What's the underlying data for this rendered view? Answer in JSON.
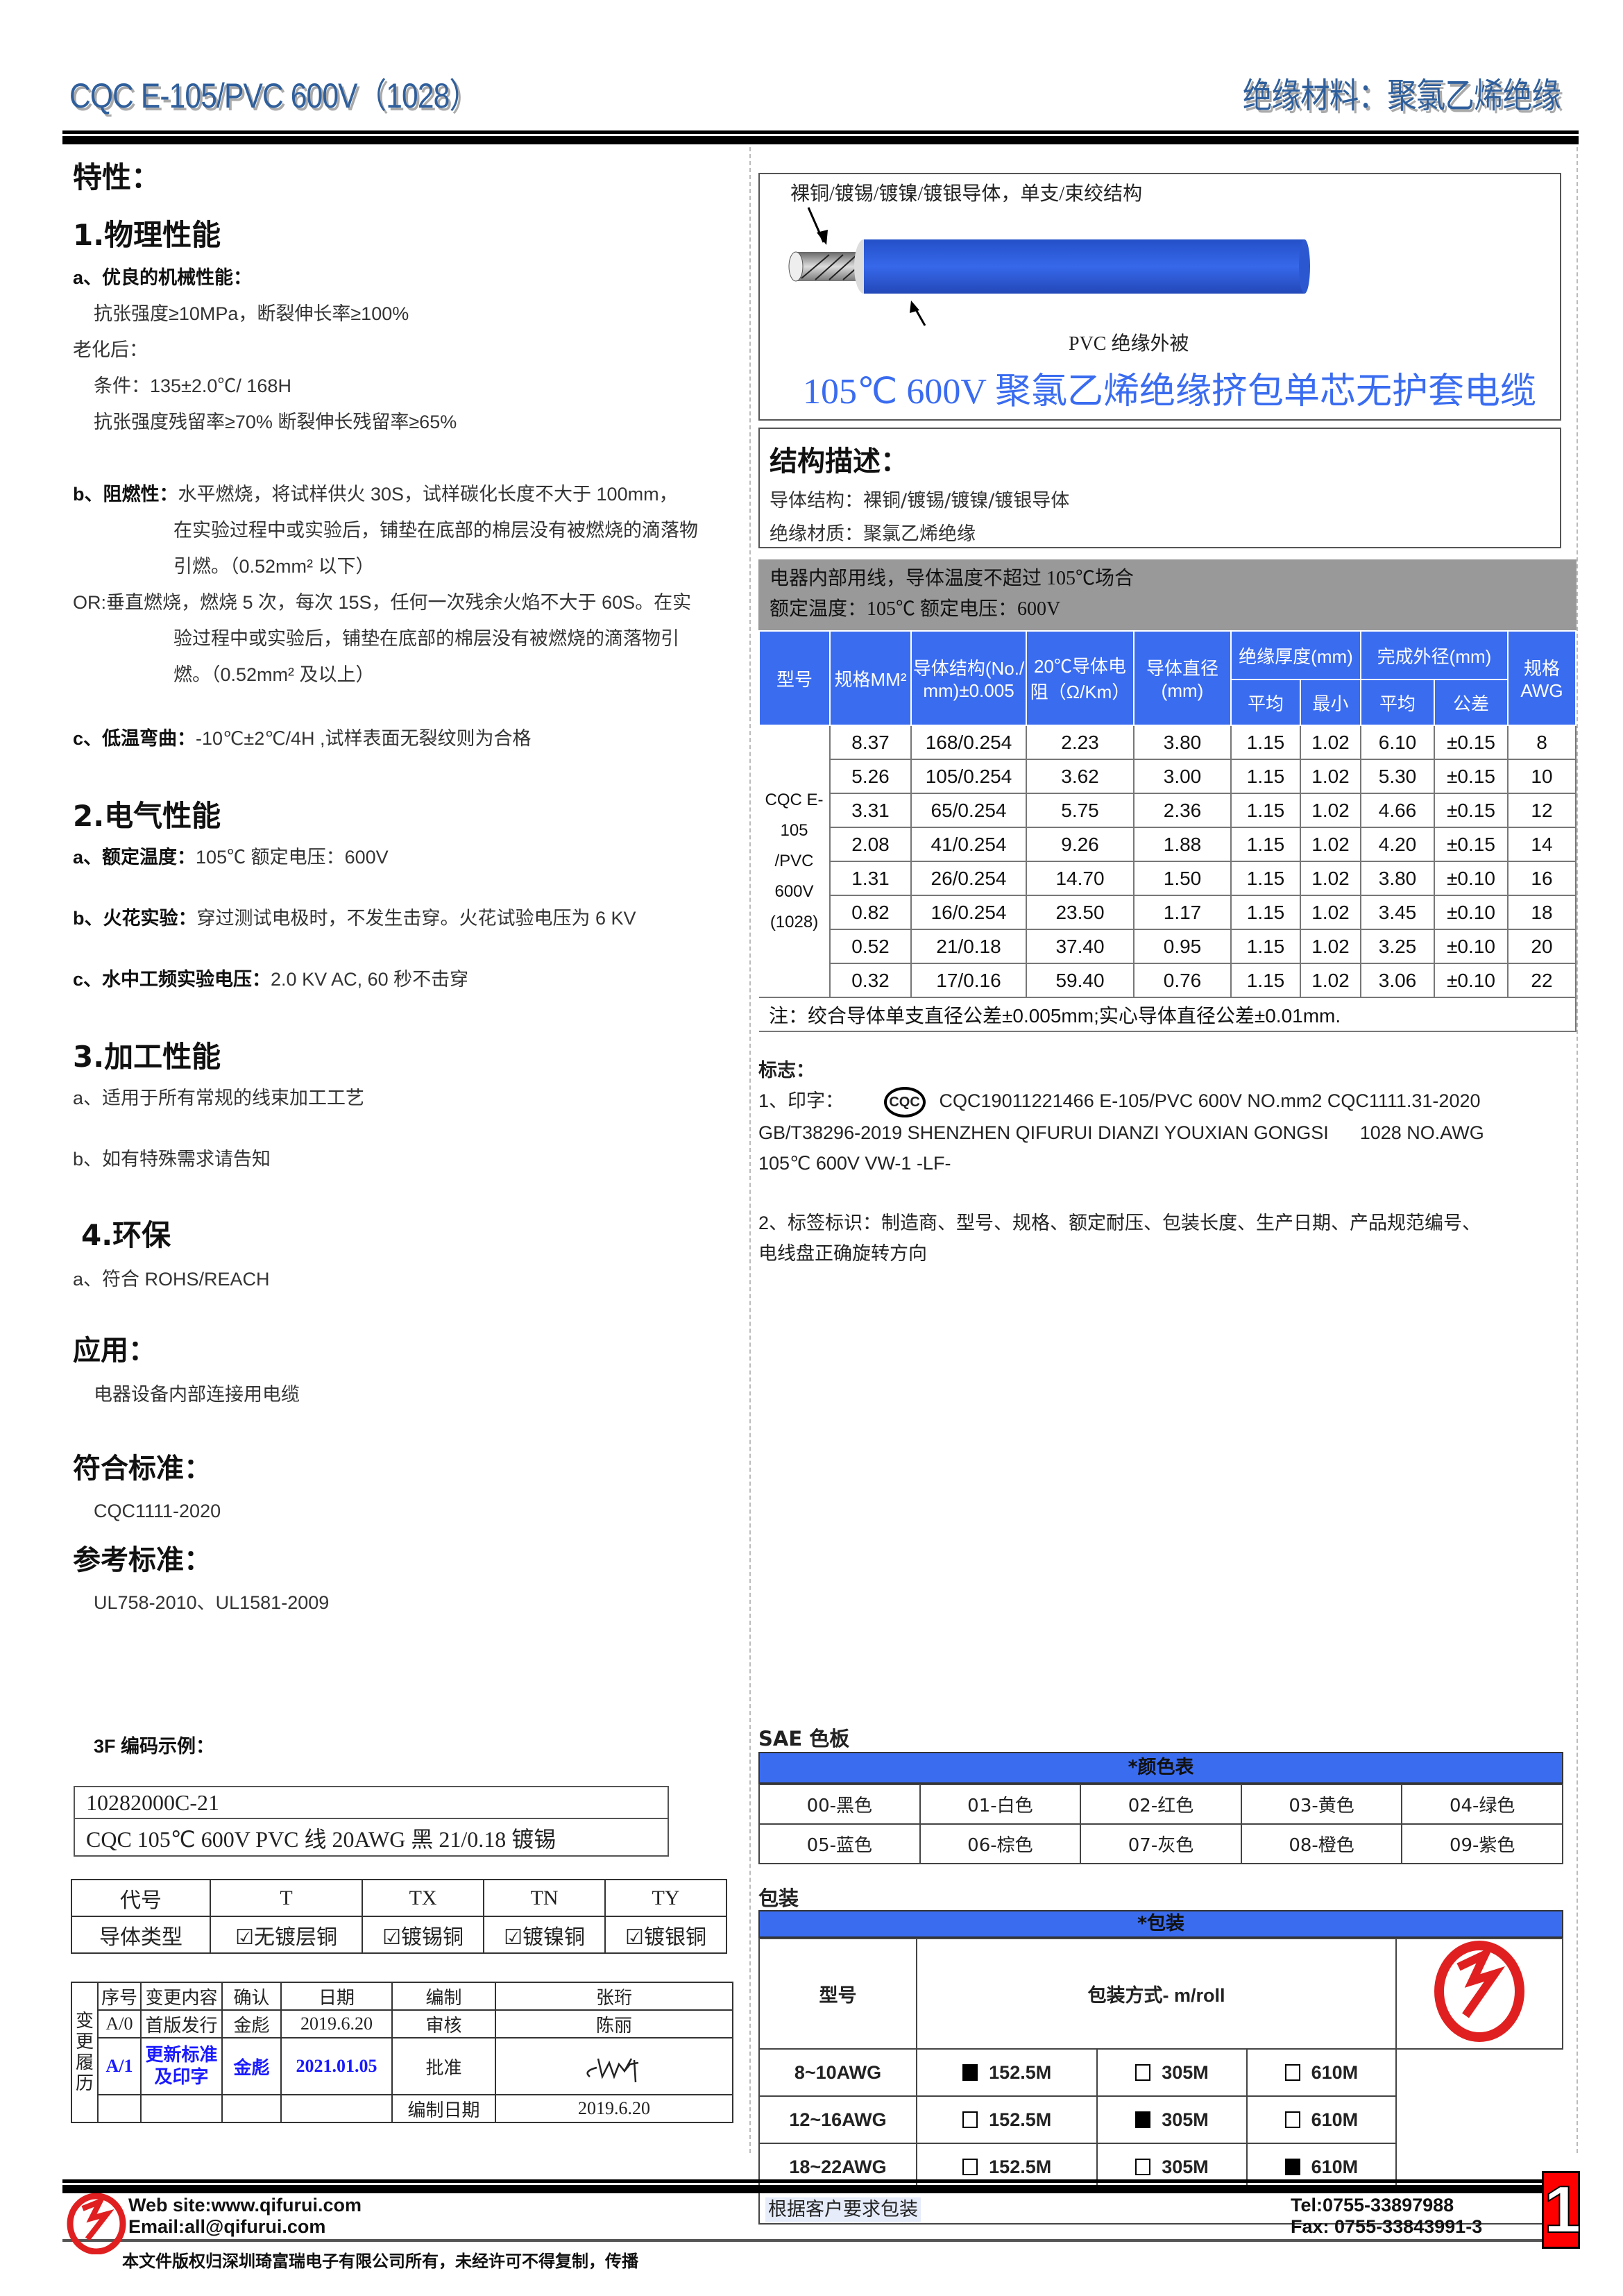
{
  "header": {
    "left_title": "CQC E-105/PVC 600V（1028）",
    "right_title": "绝缘材料：聚氯乙烯绝缘"
  },
  "left": {
    "features_title": "特性：",
    "physical": {
      "title": "1.物理性能",
      "a_label": "a、优良的机械性能：",
      "a1": "抗张强度≥10MPa，断裂伸长率≥100%",
      "aging": "老化后：",
      "cond": "条件：135±2.0℃/ 168H",
      "retain": "抗张强度残留率≥70%  断裂伸长残留率≥65%",
      "b_label": "b、阻燃性：",
      "b1": "水平燃烧，将试样供火 30S，试样碳化长度不大于 100mm，",
      "b2": "在实验过程中或实验后，铺垫在底部的棉层没有被燃烧的滴落物",
      "b3": "引燃。（0.52mm² 以下）",
      "or1": "OR:垂直燃烧，燃烧 5 次，每次 15S，任何一次残余火焰不大于 60S。在实",
      "or2": "验过程中或实验后，铺垫在底部的棉层没有被燃烧的滴落物引",
      "or3": "燃。（0.52mm² 及以上）",
      "c_label": "c、低温弯曲：",
      "c1": "-10℃±2℃/4H ,试样表面无裂纹则为合格"
    },
    "electrical": {
      "title": "2.电气性能",
      "a_label": "a、额定温度：",
      "a1": "105℃   额定电压：600V",
      "b_label": "b、火花实验：",
      "b1": "穿过测试电极时，不发生击穿。火花试验电压为 6 KV",
      "c_label": "c、水中工频实验电压：",
      "c1": "2.0 KV AC, 60 秒不击穿"
    },
    "processing": {
      "title": "3.加工性能",
      "a": "a、适用于所有常规的线束加工工艺",
      "b": "b、如有特殊需求请告知"
    },
    "env": {
      "title": "4.环保",
      "a": "a、符合 ROHS/REACH"
    },
    "application": {
      "title": "应用：",
      "text": "电器设备内部连接用电缆"
    },
    "standard": {
      "title": "符合标准：",
      "text": "CQC1111-2020"
    },
    "reference": {
      "title": "参考标准：",
      "text": "UL758-2010、UL1581-2009"
    },
    "code_example": {
      "title": "3F 编码示例：",
      "code": "10282000C-21",
      "desc": "CQC 105℃  600V PVC 线    20AWG  黑  21/0.18 镀锡"
    },
    "code_table": {
      "head": [
        "代号",
        "T",
        "TX",
        "TN",
        "TY"
      ],
      "row": [
        "导体类型",
        "无镀层铜",
        "镀锡铜",
        "镀镍铜",
        "镀银铜"
      ]
    },
    "change_table": {
      "side": "变更履历",
      "head": [
        "序号",
        "变更内容",
        "确认",
        "日期",
        "编制",
        "张珩"
      ],
      "r1": [
        "A/0",
        "首版发行",
        "金彪",
        "2019.6.20",
        "审核",
        "陈丽"
      ],
      "r2": [
        "A/1",
        "更新标准及印字",
        "金彪",
        "2021.01.05",
        "批准"
      ],
      "r3": [
        "编制日期",
        "2019.6.20"
      ]
    }
  },
  "right": {
    "diagram": {
      "conductor_label": "裸铜/镀锡/镀镍/镀银导体，单支/束绞结构",
      "insulation_label": "PVC  绝缘外被",
      "title": "105℃  600V 聚氯乙烯绝缘挤包单芯无护套电缆",
      "cable_color": "#2f5fe0"
    },
    "structure": {
      "title": "结构描述：",
      "l1": "导体结构：裸铜/镀锡/镀镍/镀银导体",
      "l2": "绝缘材质：聚氯乙烯绝缘"
    },
    "usage": {
      "l1": "电器内部用线，导体温度不超过 105℃场合",
      "l2": "额定温度：105℃  额定电压：600V"
    },
    "spec_table": {
      "headers": {
        "model": "型号",
        "size": "规格MM²",
        "cond": "导体结构(No./ mm)±0.005",
        "res": "20℃导体电阻（Ω/Km）",
        "dia": "导体直径(mm)",
        "ins": "绝缘厚度(mm)",
        "ins_avg": "平均",
        "ins_min": "最小",
        "od": "完成外径(mm)",
        "od_avg": "平均",
        "od_tol": "公差",
        "awg": "规格AWG"
      },
      "model": "CQC E-105 /PVC 600V (1028)",
      "rows": [
        [
          "8.37",
          "168/0.254",
          "2.23",
          "3.80",
          "1.15",
          "1.02",
          "6.10",
          "±0.15",
          "8"
        ],
        [
          "5.26",
          "105/0.254",
          "3.62",
          "3.00",
          "1.15",
          "1.02",
          "5.30",
          "±0.15",
          "10"
        ],
        [
          "3.31",
          "65/0.254",
          "5.75",
          "2.36",
          "1.15",
          "1.02",
          "4.66",
          "±0.15",
          "12"
        ],
        [
          "2.08",
          "41/0.254",
          "9.26",
          "1.88",
          "1.15",
          "1.02",
          "4.20",
          "±0.15",
          "14"
        ],
        [
          "1.31",
          "26/0.254",
          "14.70",
          "1.50",
          "1.15",
          "1.02",
          "3.80",
          "±0.10",
          "16"
        ],
        [
          "0.82",
          "16/0.254",
          "23.50",
          "1.17",
          "1.15",
          "1.02",
          "3.45",
          "±0.10",
          "18"
        ],
        [
          "0.52",
          "21/0.18",
          "37.40",
          "0.95",
          "1.15",
          "1.02",
          "3.25",
          "±0.10",
          "20"
        ],
        [
          "0.32",
          "17/0.16",
          "59.40",
          "0.76",
          "1.15",
          "1.02",
          "3.06",
          "±0.10",
          "22"
        ]
      ],
      "note": "注：绞合导体单支直径公差±0.005mm;实心导体直径公差±0.01mm."
    },
    "marking": {
      "title": "标志：",
      "p1_label": "1、印字：",
      "cqc_logo": "CQC",
      "p1a": "CQC19011221466  E-105/PVC  600V  NO.mm2  CQC1111.31-2020",
      "p1b": "GB/T38296-2019 SHENZHEN QIFURUI DIANZI YOUXIAN GONGSI      1028 NO.AWG",
      "p1c": "105℃  600V VW-1 -LF-",
      "p2a": "2、标签标识：制造商、型号、规格、额定耐压、包装长度、生产日期、产品规范编号、",
      "p2b": "电线盘正确旋转方向"
    },
    "colors": {
      "title": "SAE 色板",
      "bar": "*颜色表",
      "items": [
        "00-黑色",
        "01-白色",
        "02-红色",
        "03-黄色",
        "04-绿色",
        "05-蓝色",
        "06-棕色",
        "07-灰色",
        "08-橙色",
        "09-紫色"
      ]
    },
    "packing": {
      "title": "包装",
      "bar": "*包装",
      "col_model": "型号",
      "col_method": "包装方式- m/roll",
      "rows": [
        {
          "model": "8~10AWG",
          "opts": [
            "152.5M",
            "305M",
            "610M"
          ],
          "checked": 0
        },
        {
          "model": "12~16AWG",
          "opts": [
            "152.5M",
            "305M",
            "610M"
          ],
          "checked": 1
        },
        {
          "model": "18~22AWG",
          "opts": [
            "152.5M",
            "305M",
            "610M"
          ],
          "checked": 2
        }
      ],
      "note": "根据客户要求包装"
    }
  },
  "footer": {
    "web": "Web site:www.qifurui.com",
    "email": "Email:all@qifurui.com",
    "tel": "Tel:0755-33897988",
    "fax": "Fax: 0755-33843991-3",
    "copyright": "本文件版权归深圳琦富瑞电子有限公司所有，未经许可不得复制，传播",
    "page": "1",
    "brand_color": "#e02020"
  }
}
